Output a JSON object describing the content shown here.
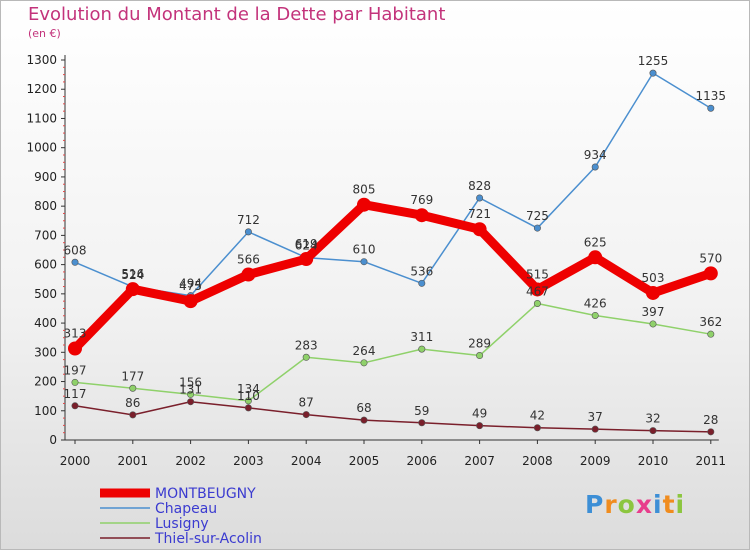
{
  "title": "Evolution du Montant de la Dette par Habitant",
  "unit": "(en €)",
  "logo_text": "Proxiti",
  "chart_data": {
    "type": "line",
    "x": [
      "2000",
      "2001",
      "2002",
      "2003",
      "2004",
      "2005",
      "2006",
      "2007",
      "2008",
      "2009",
      "2010",
      "2011"
    ],
    "ylim": [
      0,
      1300
    ],
    "yticks": [
      0,
      100,
      200,
      300,
      400,
      500,
      600,
      700,
      800,
      900,
      1000,
      1100,
      1200,
      1300
    ],
    "grid": false,
    "legend_position": "bottom-left",
    "series": [
      {
        "name": "MONTBEUGNY",
        "color": "#ee0000",
        "values": [
          313,
          516,
          475,
          566,
          619,
          805,
          769,
          721,
          515,
          625,
          503,
          570
        ]
      },
      {
        "name": "Chapeau",
        "color": "#4b8fcf",
        "values": [
          608,
          524,
          494,
          712,
          624,
          610,
          536,
          828,
          725,
          934,
          1255,
          1135
        ]
      },
      {
        "name": "Lusigny",
        "color": "#8fd16a",
        "values": [
          197,
          177,
          156,
          134,
          283,
          264,
          311,
          289,
          467,
          426,
          397,
          362
        ]
      },
      {
        "name": "Thiel-sur-Acolin",
        "color": "#7a1f2b",
        "values": [
          117,
          86,
          131,
          110,
          87,
          68,
          59,
          49,
          42,
          37,
          32,
          28
        ]
      }
    ]
  }
}
